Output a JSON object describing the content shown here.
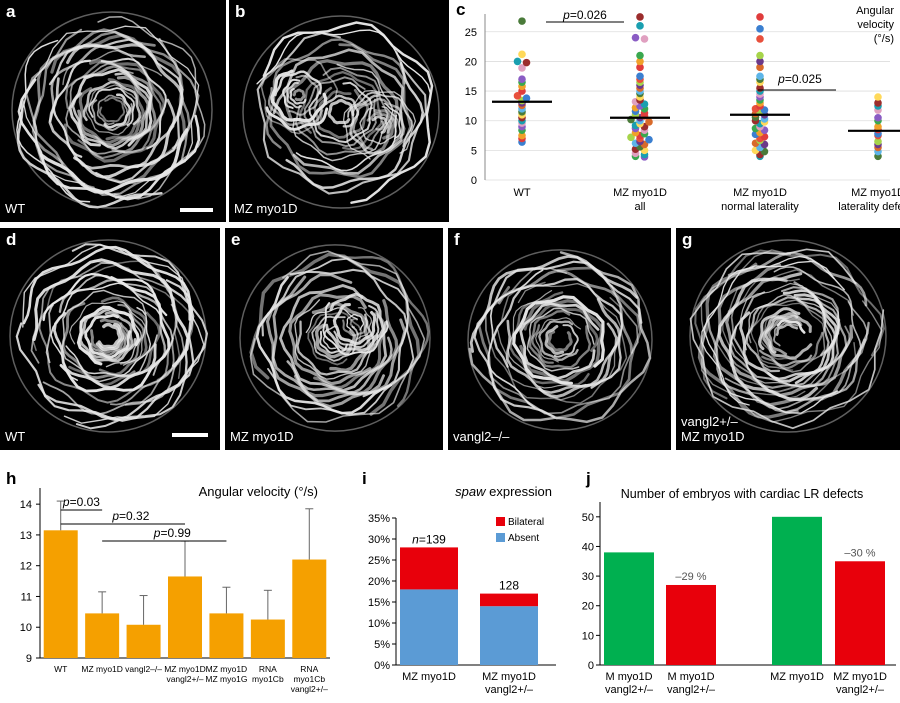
{
  "figure": {
    "panels": [
      {
        "id": "a",
        "label": "a",
        "caption": [
          "WT"
        ],
        "scale_bar": true
      },
      {
        "id": "b",
        "label": "b",
        "caption": [
          "MZ myo1D"
        ],
        "scale_bar": false
      },
      {
        "id": "d",
        "label": "d",
        "caption": [
          "WT"
        ],
        "scale_bar": true
      },
      {
        "id": "e",
        "label": "e",
        "caption": [
          "MZ myo1D"
        ],
        "scale_bar": false
      },
      {
        "id": "f",
        "label": "f",
        "caption": [
          "vangl2–/–"
        ],
        "scale_bar": false
      },
      {
        "id": "g",
        "label": "g",
        "caption": [
          "vangl2+/–",
          "MZ myo1D"
        ],
        "scale_bar": false
      }
    ],
    "colors": {
      "orange": "#f5a000",
      "red": "#e8000b",
      "blue": "#5b9bd5",
      "green": "#00b050"
    }
  },
  "chart_data": [
    {
      "id": "c",
      "label": "c",
      "type": "scatter",
      "title": "",
      "ylabel_lines": [
        "Angular",
        "velocity",
        "(°/s)"
      ],
      "ylim": [
        0,
        28
      ],
      "yticks": [
        0,
        5,
        10,
        15,
        20,
        25
      ],
      "categories": [
        [
          "WT"
        ],
        [
          "MZ myo1D",
          "all"
        ],
        [
          "MZ myo1D",
          "normal laterality"
        ],
        [
          "MZ myo1D",
          "laterality defects"
        ]
      ],
      "medians": [
        13.2,
        10.5,
        11.0,
        8.3
      ],
      "points": [
        [
          26.8,
          21.2,
          20.0,
          19.8,
          18.9,
          17.0,
          16.5,
          15.8,
          15.0,
          14.2,
          13.8,
          13.4,
          13.0,
          12.6,
          12.0,
          11.5,
          11.0,
          10.5,
          10.0,
          9.6,
          9.0,
          8.4,
          7.5,
          7.0,
          6.4
        ],
        [
          27.5,
          26.0,
          24.0,
          23.8,
          21.0,
          20.0,
          19.0,
          17.5,
          17.0,
          16.5,
          16.0,
          15.5,
          15.0,
          14.6,
          14.0,
          13.5,
          13.2,
          12.8,
          12.5,
          12.2,
          12.0,
          11.6,
          11.3,
          11.0,
          10.8,
          10.5,
          10.2,
          10.0,
          9.8,
          9.5,
          9.2,
          9.0,
          8.7,
          8.4,
          8.0,
          7.8,
          7.5,
          7.2,
          7.0,
          6.8,
          6.5,
          6.2,
          6.0,
          5.6,
          5.2,
          5.0,
          4.5,
          4.3,
          4.0,
          3.9
        ],
        [
          27.5,
          25.5,
          23.8,
          21.0,
          20.0,
          19.0,
          17.5,
          17.0,
          16.5,
          15.5,
          15.0,
          14.5,
          14.0,
          13.5,
          13.0,
          12.5,
          12.0,
          11.8,
          11.5,
          11.2,
          11.0,
          10.6,
          10.3,
          10.0,
          9.8,
          9.5,
          9.0,
          8.7,
          8.4,
          8.0,
          7.7,
          7.3,
          7.0,
          6.7,
          6.2,
          6.0,
          5.5,
          5.0,
          4.8,
          4.3,
          4.0
        ],
        [
          14.0,
          13.0,
          12.5,
          11.8,
          10.5,
          10.0,
          9.0,
          8.5,
          7.8,
          7.5,
          6.5,
          6.0,
          5.5,
          4.8,
          4.0
        ]
      ],
      "annotations": [
        {
          "text": "p",
          "value": "=0.026",
          "between": [
            0,
            1
          ]
        },
        {
          "text": "p",
          "value": "=0.025",
          "between": [
            2,
            3
          ]
        }
      ]
    },
    {
      "id": "h",
      "label": "h",
      "type": "bar",
      "title": "Angular velocity (°/s)",
      "categories": [
        [
          "WT"
        ],
        [
          "MZ myo1D"
        ],
        [
          "vangl2–/–"
        ],
        [
          "MZ myo1D",
          "vangl2+/–"
        ],
        [
          "MZ myo1D",
          "MZ myo1G"
        ],
        [
          "RNA",
          "myo1Cb"
        ],
        [
          "RNA",
          "myo1Cb",
          "vangl2+/–"
        ]
      ],
      "values": [
        13.15,
        10.45,
        10.08,
        11.65,
        10.45,
        10.25,
        12.2
      ],
      "errors": [
        0.95,
        0.7,
        0.95,
        1.15,
        0.85,
        0.95,
        1.65
      ],
      "ylim": [
        9,
        14.2
      ],
      "yticks": [
        9,
        10,
        11,
        12,
        13,
        14
      ],
      "annotations": [
        {
          "text": "p",
          "value": "=0.03",
          "between": [
            0,
            1
          ]
        },
        {
          "text": "p",
          "value": "=0.32",
          "between": [
            0,
            3
          ]
        },
        {
          "text": "p",
          "value": "=0.99",
          "between": [
            1,
            4
          ]
        }
      ]
    },
    {
      "id": "i",
      "label": "i",
      "type": "bar",
      "title": "spaw",
      "title_suffix": " expression",
      "categories": [
        [
          "MZ myo1D"
        ],
        [
          "MZ myo1D",
          "vangl2+/–"
        ]
      ],
      "series": [
        {
          "name": "Absent",
          "values": [
            18,
            14
          ]
        },
        {
          "name": "Bilateral",
          "values": [
            10,
            3
          ]
        }
      ],
      "bar_labels": [
        {
          "prefix": "n",
          "value": "=139"
        },
        {
          "prefix": "",
          "value": "128"
        }
      ],
      "ylim": [
        0,
        35
      ],
      "yticks": [
        "0%",
        "5%",
        "10%",
        "15%",
        "20%",
        "25%",
        "30%",
        "35%"
      ]
    },
    {
      "id": "j",
      "label": "j",
      "type": "bar",
      "title": "Number of embryos with cardiac LR defects",
      "categories": [
        [
          "M myo1D",
          "vangl2+/–"
        ],
        [
          "M myo1D",
          "vangl2+/–"
        ],
        [
          "MZ myo1D"
        ],
        [
          "MZ myo1D",
          "vangl2+/–"
        ]
      ],
      "values": [
        38,
        27,
        50,
        35
      ],
      "bar_labels": [
        "",
        "–29 %",
        "",
        "–30 %"
      ],
      "ylim": [
        0,
        55
      ],
      "yticks": [
        0,
        10,
        20,
        30,
        40,
        50
      ]
    }
  ]
}
